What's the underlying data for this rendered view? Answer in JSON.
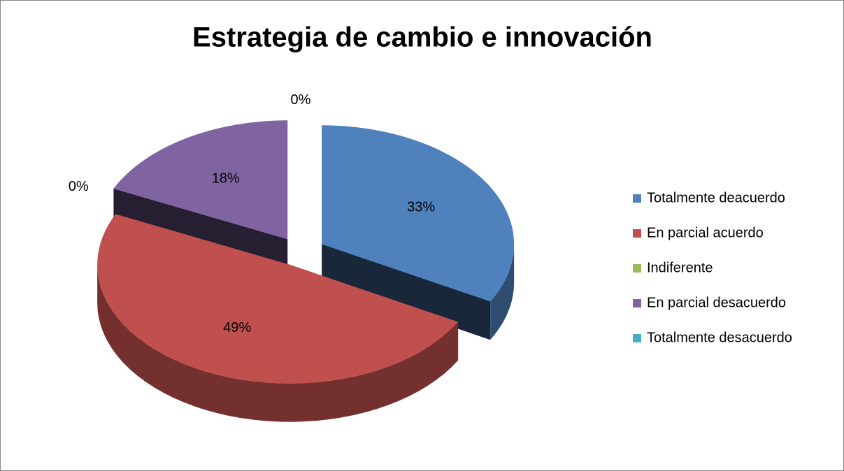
{
  "chart_data": {
    "type": "pie3d",
    "title": "Estrategia de cambio e innovación",
    "categories": [
      "Totalmente deacuerdo",
      "En parcial acuerdo",
      "Indiferente",
      "En parcial desacuerdo",
      "Totalmente desacuerdo"
    ],
    "values": [
      33,
      49,
      0,
      18,
      0
    ],
    "value_labels": [
      "33%",
      "49%",
      "0%",
      "18%",
      "0%"
    ],
    "colors": [
      "#4f81bd",
      "#c0504d",
      "#9bbb59",
      "#8064a2",
      "#4bacc6"
    ],
    "legend": "right"
  }
}
